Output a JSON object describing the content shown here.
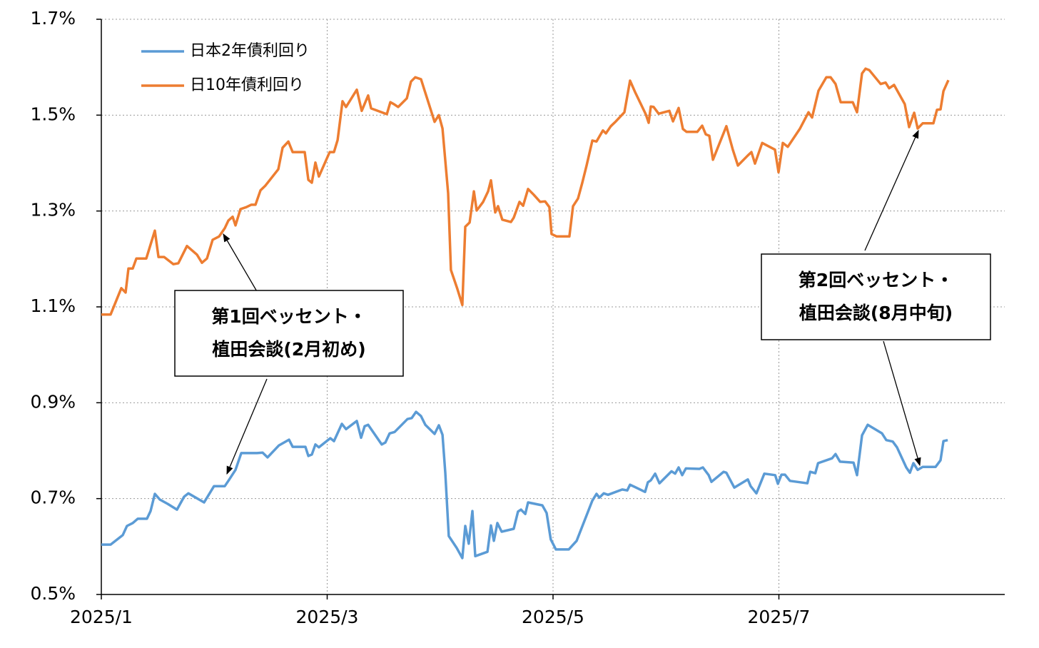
{
  "chart_data": {
    "type": "line",
    "xlim": [
      1,
      9
    ],
    "xticks": [
      {
        "value": 1,
        "label": "2025/1"
      },
      {
        "value": 3,
        "label": "2025/3"
      },
      {
        "value": 5,
        "label": "2025/5"
      },
      {
        "value": 7,
        "label": "2025/7"
      }
    ],
    "ylim": [
      0.5,
      1.7
    ],
    "yticks": [
      {
        "value": 0.5,
        "label": "0.5%"
      },
      {
        "value": 0.7,
        "label": "0.7%"
      },
      {
        "value": 0.9,
        "label": "0.9%"
      },
      {
        "value": 1.1,
        "label": "1.1%"
      },
      {
        "value": 1.3,
        "label": "1.3%"
      },
      {
        "value": 1.5,
        "label": "1.5%"
      },
      {
        "value": 1.7,
        "label": "1.7%"
      }
    ],
    "grid": true,
    "legend": "upper left",
    "series": [
      {
        "name": "日本2年債利回り",
        "color": "#5b9bd5",
        "x": [
          1.0,
          1.082,
          1.19,
          1.227,
          1.278,
          1.322,
          1.404,
          1.436,
          1.474,
          1.518,
          1.588,
          1.67,
          1.733,
          1.771,
          1.91,
          1.998,
          2.093,
          2.125,
          2.188,
          2.239,
          2.378,
          2.428,
          2.472,
          2.573,
          2.662,
          2.694,
          2.807,
          2.833,
          2.864,
          2.896,
          2.927,
          3.028,
          3.06,
          3.13,
          3.167,
          3.262,
          3.3,
          3.332,
          3.363,
          3.483,
          3.515,
          3.553,
          3.597,
          3.711,
          3.749,
          3.787,
          3.831,
          3.869,
          3.951,
          3.989,
          4.021,
          4.046,
          4.077,
          4.147,
          4.197,
          4.223,
          4.254,
          4.286,
          4.311,
          4.419,
          4.45,
          4.476,
          4.507,
          4.545,
          4.652,
          4.69,
          4.716,
          4.754,
          4.779,
          4.905,
          4.943,
          4.98,
          5.025,
          5.139,
          5.209,
          5.348,
          5.385,
          5.411,
          5.449,
          5.487,
          5.613,
          5.657,
          5.682,
          5.815,
          5.84,
          5.866,
          5.904,
          5.942,
          6.049,
          6.081,
          6.112,
          6.144,
          6.176,
          6.296,
          6.327,
          6.378,
          6.403,
          6.51,
          6.535,
          6.605,
          6.725,
          6.75,
          6.801,
          6.871,
          6.967,
          6.991,
          7.023,
          7.054,
          7.098,
          7.252,
          7.277,
          7.322,
          7.347,
          7.471,
          7.502,
          7.541,
          7.661,
          7.692,
          7.736,
          7.787,
          7.913,
          7.951,
          8.008,
          8.046,
          8.128,
          8.16,
          8.191,
          8.229,
          8.273,
          8.387,
          8.431,
          8.457,
          8.495
        ],
        "values": [
          0.604,
          0.604,
          0.624,
          0.643,
          0.649,
          0.658,
          0.658,
          0.674,
          0.71,
          0.698,
          0.689,
          0.677,
          0.704,
          0.711,
          0.692,
          0.726,
          0.726,
          0.737,
          0.76,
          0.795,
          0.795,
          0.796,
          0.786,
          0.811,
          0.823,
          0.808,
          0.808,
          0.789,
          0.792,
          0.813,
          0.807,
          0.826,
          0.82,
          0.856,
          0.845,
          0.862,
          0.827,
          0.851,
          0.854,
          0.813,
          0.817,
          0.836,
          0.839,
          0.866,
          0.868,
          0.881,
          0.872,
          0.854,
          0.835,
          0.853,
          0.833,
          0.754,
          0.622,
          0.597,
          0.576,
          0.643,
          0.606,
          0.674,
          0.58,
          0.589,
          0.644,
          0.612,
          0.649,
          0.631,
          0.637,
          0.673,
          0.677,
          0.668,
          0.692,
          0.686,
          0.67,
          0.615,
          0.594,
          0.594,
          0.612,
          0.696,
          0.71,
          0.702,
          0.711,
          0.708,
          0.719,
          0.717,
          0.729,
          0.714,
          0.734,
          0.738,
          0.752,
          0.732,
          0.757,
          0.752,
          0.765,
          0.749,
          0.763,
          0.762,
          0.765,
          0.749,
          0.735,
          0.756,
          0.754,
          0.723,
          0.74,
          0.726,
          0.711,
          0.752,
          0.749,
          0.731,
          0.75,
          0.75,
          0.737,
          0.732,
          0.756,
          0.753,
          0.774,
          0.784,
          0.793,
          0.777,
          0.775,
          0.749,
          0.832,
          0.854,
          0.836,
          0.822,
          0.819,
          0.807,
          0.765,
          0.754,
          0.774,
          0.76,
          0.766,
          0.766,
          0.78,
          0.82,
          0.822
        ]
      },
      {
        "name": "日10年債利回り",
        "color": "#ed7d31",
        "x": [
          1.0,
          1.082,
          1.177,
          1.215,
          1.24,
          1.278,
          1.31,
          1.398,
          1.474,
          1.506,
          1.556,
          1.638,
          1.682,
          1.758,
          1.847,
          1.891,
          1.935,
          1.986,
          2.043,
          2.093,
          2.125,
          2.163,
          2.188,
          2.232,
          2.283,
          2.327,
          2.365,
          2.409,
          2.453,
          2.567,
          2.605,
          2.656,
          2.694,
          2.801,
          2.833,
          2.864,
          2.896,
          2.927,
          3.022,
          3.06,
          3.092,
          3.136,
          3.167,
          3.262,
          3.306,
          3.363,
          3.389,
          3.528,
          3.559,
          3.591,
          3.629,
          3.705,
          3.742,
          3.78,
          3.831,
          3.863,
          3.951,
          3.989,
          4.021,
          4.071,
          4.096,
          4.153,
          4.197,
          4.223,
          4.261,
          4.299,
          4.324,
          4.381,
          4.425,
          4.45,
          4.488,
          4.513,
          4.551,
          4.627,
          4.652,
          4.703,
          4.735,
          4.779,
          4.829,
          4.886,
          4.93,
          4.968,
          4.987,
          5.032,
          5.145,
          5.177,
          5.221,
          5.259,
          5.297,
          5.348,
          5.385,
          5.442,
          5.468,
          5.512,
          5.556,
          5.632,
          5.682,
          5.727,
          5.821,
          5.847,
          5.866,
          5.891,
          5.935,
          6.03,
          6.062,
          6.112,
          6.15,
          6.182,
          6.277,
          6.321,
          6.352,
          6.384,
          6.416,
          6.535,
          6.592,
          6.637,
          6.725,
          6.757,
          6.788,
          6.852,
          6.965,
          6.997,
          7.035,
          7.079,
          7.187,
          7.262,
          7.294,
          7.351,
          7.42,
          7.458,
          7.502,
          7.547,
          7.654,
          7.692,
          7.736,
          7.768,
          7.8,
          7.901,
          7.945,
          7.976,
          8.02,
          8.115,
          8.153,
          8.198,
          8.229,
          8.273,
          8.368,
          8.4,
          8.431,
          8.457,
          8.501
        ],
        "values": [
          1.084,
          1.084,
          1.139,
          1.13,
          1.18,
          1.18,
          1.201,
          1.201,
          1.259,
          1.204,
          1.204,
          1.189,
          1.191,
          1.227,
          1.209,
          1.192,
          1.201,
          1.24,
          1.247,
          1.264,
          1.28,
          1.288,
          1.27,
          1.304,
          1.308,
          1.313,
          1.313,
          1.343,
          1.353,
          1.387,
          1.432,
          1.445,
          1.423,
          1.423,
          1.365,
          1.359,
          1.401,
          1.372,
          1.423,
          1.423,
          1.448,
          1.529,
          1.517,
          1.553,
          1.509,
          1.541,
          1.514,
          1.502,
          1.527,
          1.523,
          1.517,
          1.535,
          1.57,
          1.579,
          1.575,
          1.551,
          1.486,
          1.5,
          1.472,
          1.337,
          1.177,
          1.137,
          1.104,
          1.267,
          1.276,
          1.341,
          1.301,
          1.319,
          1.341,
          1.364,
          1.297,
          1.31,
          1.282,
          1.277,
          1.286,
          1.319,
          1.311,
          1.346,
          1.334,
          1.319,
          1.32,
          1.308,
          1.252,
          1.247,
          1.247,
          1.31,
          1.326,
          1.359,
          1.395,
          1.447,
          1.445,
          1.468,
          1.462,
          1.477,
          1.487,
          1.506,
          1.572,
          1.548,
          1.502,
          1.484,
          1.518,
          1.517,
          1.503,
          1.509,
          1.487,
          1.515,
          1.471,
          1.465,
          1.465,
          1.478,
          1.46,
          1.457,
          1.407,
          1.477,
          1.428,
          1.395,
          1.416,
          1.423,
          1.399,
          1.442,
          1.428,
          1.381,
          1.442,
          1.434,
          1.472,
          1.506,
          1.495,
          1.551,
          1.579,
          1.579,
          1.565,
          1.527,
          1.527,
          1.506,
          1.587,
          1.597,
          1.594,
          1.565,
          1.568,
          1.556,
          1.563,
          1.523,
          1.475,
          1.505,
          1.472,
          1.483,
          1.483,
          1.511,
          1.512,
          1.55,
          1.573
        ]
      }
    ],
    "annotations": [
      {
        "lines": [
          "第1回ベッセント・",
          "植田会談(2月初め)"
        ]
      },
      {
        "lines": [
          "第2回ベッセント・",
          "植田会談(8月中旬)"
        ]
      }
    ]
  }
}
